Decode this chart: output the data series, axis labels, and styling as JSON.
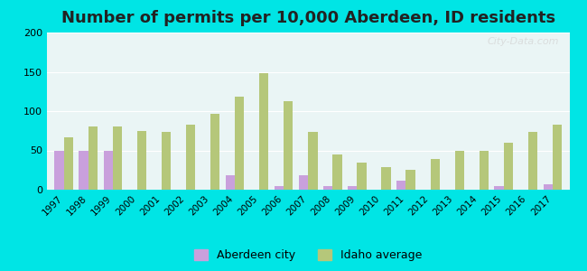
{
  "title": "Number of permits per 10,000 Aberdeen, ID residents",
  "years": [
    1997,
    1998,
    1999,
    2000,
    2001,
    2002,
    2003,
    2004,
    2005,
    2006,
    2007,
    2008,
    2009,
    2010,
    2011,
    2012,
    2013,
    2014,
    2015,
    2016,
    2017
  ],
  "aberdeen": [
    50,
    50,
    50,
    0,
    0,
    0,
    0,
    18,
    0,
    5,
    18,
    5,
    5,
    0,
    12,
    0,
    0,
    0,
    5,
    0,
    7
  ],
  "idaho": [
    67,
    80,
    80,
    75,
    73,
    83,
    97,
    118,
    148,
    113,
    73,
    45,
    34,
    29,
    25,
    39,
    49,
    49,
    60,
    73,
    83
  ],
  "aberdeen_color": "#c9a0dc",
  "idaho_color": "#b5c77a",
  "bg_outer": "#00e5e5",
  "bg_plot_top": "#eaf5f5",
  "bg_plot_bottom": "#d4edda",
  "ylim": [
    0,
    200
  ],
  "yticks": [
    0,
    50,
    100,
    150,
    200
  ],
  "title_fontsize": 13,
  "legend_aberdeen": "Aberdeen city",
  "legend_idaho": "Idaho average"
}
